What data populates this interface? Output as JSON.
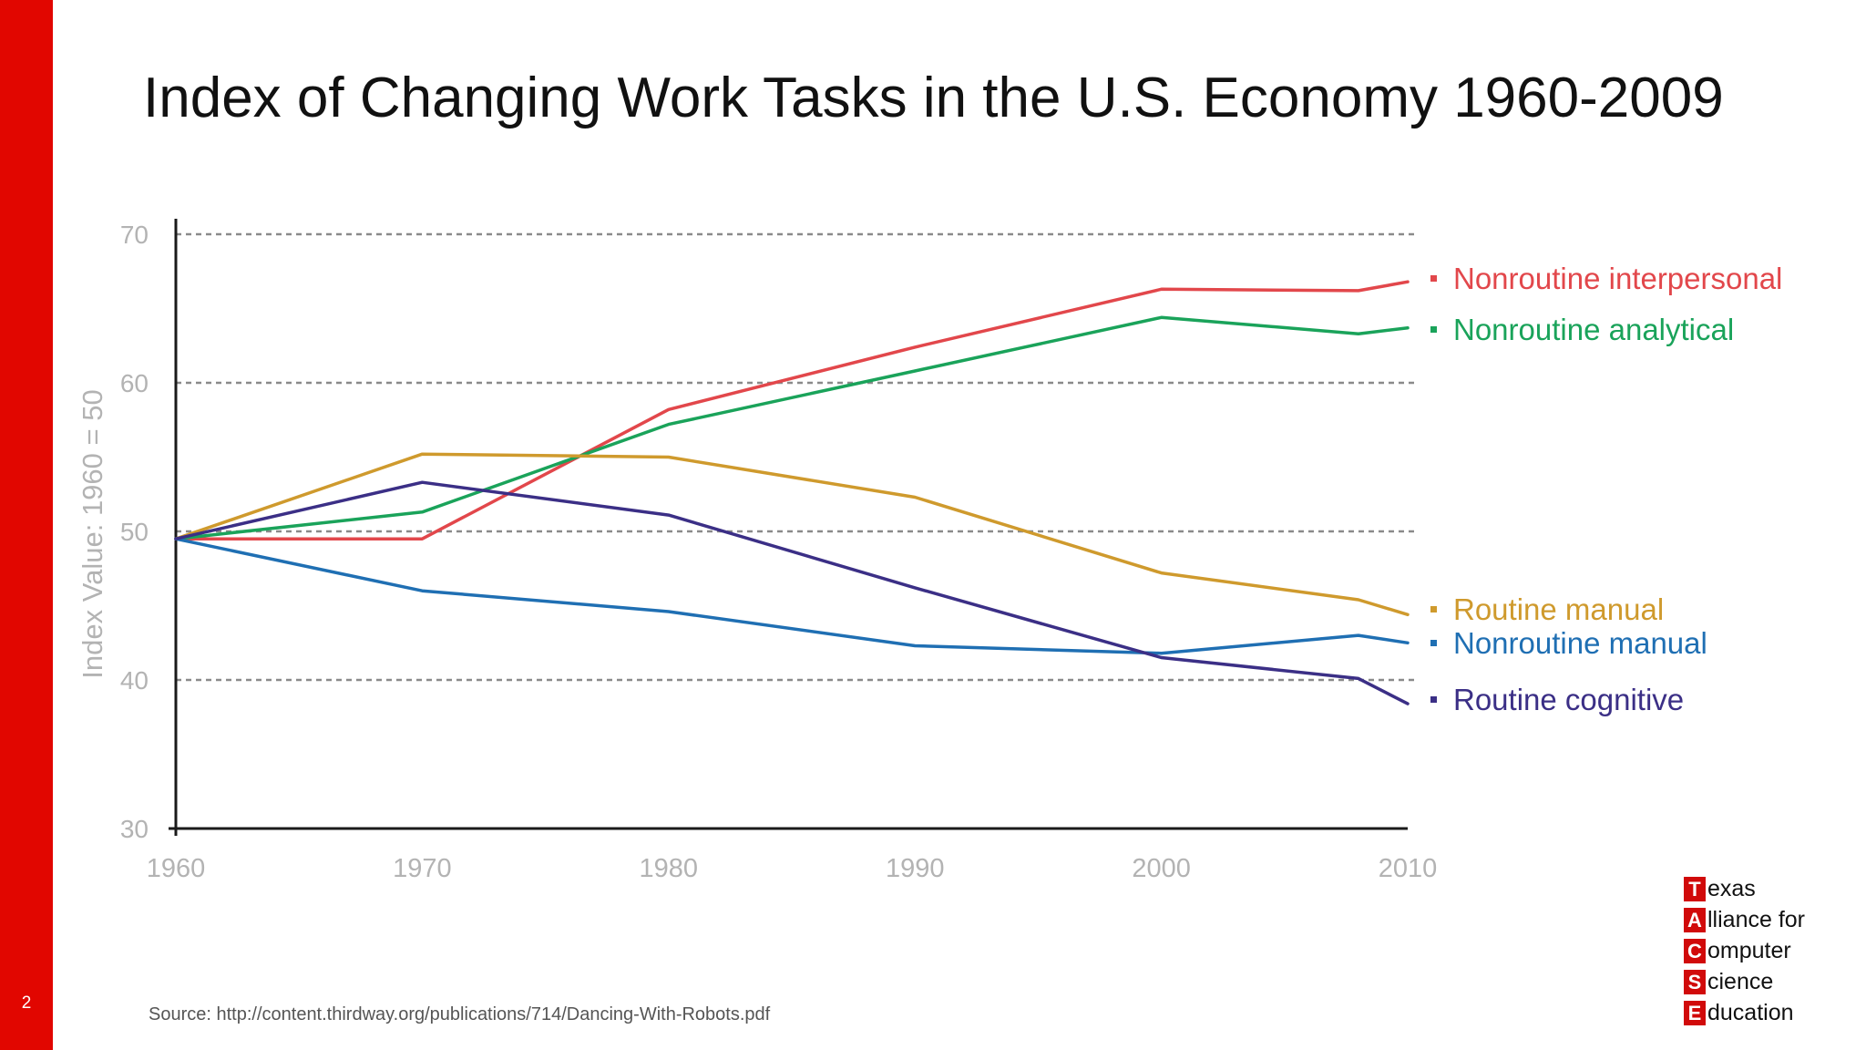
{
  "slide": {
    "number": "2",
    "title": "Index of Changing Work Tasks in the U.S. Economy 1960-2009",
    "source": "Source: http://content.thirdway.org/publications/714/Dancing-With-Robots.pdf",
    "brand_color": "#e10600"
  },
  "logo": {
    "lines": [
      {
        "letter": "T",
        "rest": "exas"
      },
      {
        "letter": "A",
        "rest": "lliance for"
      },
      {
        "letter": "C",
        "rest": "omputer"
      },
      {
        "letter": "S",
        "rest": "cience"
      },
      {
        "letter": "E",
        "rest": "ducation"
      }
    ]
  },
  "chart_data": {
    "type": "line",
    "title": "",
    "xlabel": "",
    "ylabel": "Index Value: 1960 = 50",
    "xlim": [
      1960,
      2010
    ],
    "ylim": [
      30,
      70
    ],
    "x_ticks": [
      "1960",
      "1970",
      "1980",
      "1990",
      "2000",
      "2010"
    ],
    "y_ticks": [
      "30",
      "40",
      "50",
      "60",
      "70"
    ],
    "y_grid_values": [
      40,
      50,
      60,
      70
    ],
    "grid": "horizontal dashed",
    "legend_position": "right",
    "series": [
      {
        "name": "Nonroutine interpersonal",
        "color": "#e2474b",
        "x": [
          1960,
          1970,
          1980,
          1990,
          2000,
          2008,
          2010
        ],
        "y": [
          49.5,
          49.5,
          58.2,
          62.4,
          66.3,
          66.2,
          66.8
        ]
      },
      {
        "name": "Nonroutine analytical",
        "color": "#1aa35a",
        "x": [
          1960,
          1970,
          1980,
          1990,
          2000,
          2008,
          2010
        ],
        "y": [
          49.5,
          51.3,
          57.2,
          60.8,
          64.4,
          63.3,
          63.7
        ]
      },
      {
        "name": "Routine manual",
        "color": "#cf9a2d",
        "x": [
          1960,
          1970,
          1980,
          1990,
          2000,
          2008,
          2010
        ],
        "y": [
          49.5,
          55.2,
          55.0,
          52.3,
          47.2,
          45.4,
          44.4
        ]
      },
      {
        "name": "Nonroutine manual",
        "color": "#1f6fb3",
        "x": [
          1960,
          1970,
          1980,
          1990,
          2000,
          2008,
          2010
        ],
        "y": [
          49.5,
          46.0,
          44.6,
          42.3,
          41.8,
          43.0,
          42.5
        ]
      },
      {
        "name": "Routine cognitive",
        "color": "#3b2f86",
        "x": [
          1960,
          1970,
          1980,
          1990,
          2000,
          2008,
          2010
        ],
        "y": [
          49.5,
          53.3,
          51.1,
          46.2,
          41.5,
          40.1,
          38.4
        ]
      }
    ]
  }
}
